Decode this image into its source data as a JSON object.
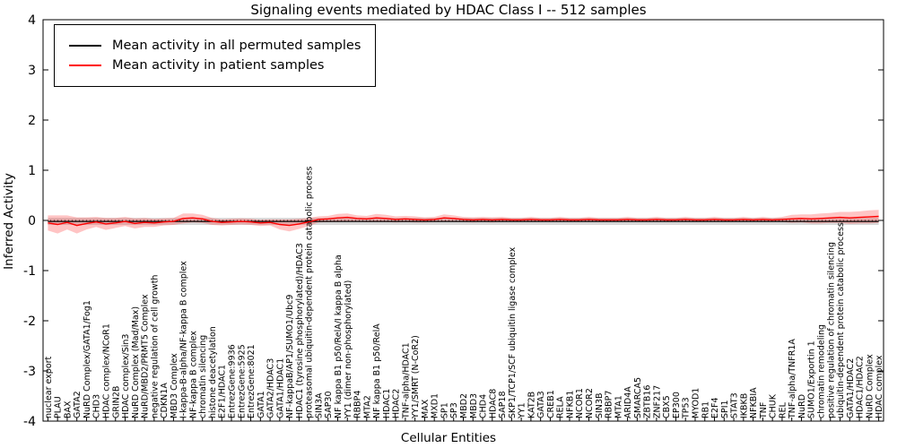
{
  "chart_data": {
    "type": "line",
    "title": "Signaling events mediated by HDAC Class I -- 512 samples",
    "xlabel": "Cellular Entities",
    "ylabel": "Inferred Activity",
    "ylim": [
      -4,
      4
    ],
    "yticks": [
      "-4",
      "-3",
      "-2",
      "-1",
      "0",
      "1",
      "2",
      "3",
      "4"
    ],
    "grid": false,
    "legend_position": "upper-left",
    "zero_line": {
      "value": 0,
      "style": "dotted",
      "color": "#000000"
    },
    "colors": {
      "permuted_line": "#000000",
      "patient_line": "#ff0000",
      "permuted_band": "rgba(120,120,120,0.30)",
      "patient_band": "rgba(255,60,60,0.30)",
      "axis": "#000000",
      "background": "#ffffff"
    },
    "categories": [
      "nuclear export",
      "PLAU",
      "BAX",
      "GATA2",
      "NuRD Complex/GATA1/Fog1",
      "CHD3",
      "HDAC complex/NCoR1",
      "GRIN2B",
      "HDAC complex/Sin3",
      "NuRD Complex (Mad/Max)",
      "NuRD/MBD2/PRMT5 Complex",
      "negative regulation of cell growth",
      "CDKN1A",
      "MBD3 Complex",
      "I-kappa-B-alpha/NF-kappa B complex",
      "NF-kappa B complex",
      "chromatin silencing",
      "histone deacetylation",
      "E2F1/HDAC1",
      "EntrezGene:9936",
      "EntrezGene:5925",
      "EntrezGene:8021",
      "GATA1",
      "GATA2/HDAC3",
      "GATA1/HDAC1",
      "NF-kappaB/AP1/SUMO1/Ubc9",
      "HDAC1 (tyrosine phosphorylated)/HDAC3",
      "proteasomal ubiquitin-dependent protein catabolic process",
      "SIN3A",
      "SAP30",
      "NF kappa B1 p50/RelA/I kappa B alpha",
      "YY1 (dimer non-phosphorylated)",
      "RBBP4",
      "MTA2",
      "NF kappa B1 p50/RelA",
      "HDAC1",
      "HDAC2",
      "TNF-alpha/HDAC1",
      "YY1/SMRT (N-CoR2)",
      "MAX",
      "MXD1",
      "SP1",
      "SP3",
      "MBD2",
      "MBD3",
      "CHD4",
      "HDAC8",
      "SAP18",
      "SKP1/TCP1/SCF ubiquitin ligase complex",
      "YY1",
      "KAT2B",
      "GATA3",
      "CREB1",
      "RELA",
      "NFKB1",
      "NCOR1",
      "NCOR2",
      "SIN3B",
      "RBBP7",
      "MTA1",
      "ARID4A",
      "SMARCA5",
      "ZBTB16",
      "ZNF217",
      "CBX5",
      "EP300",
      "TP53",
      "MYOD1",
      "RB1",
      "E2F4",
      "SPI1",
      "STAT3",
      "IKBKB",
      "NFKBIA",
      "TNF",
      "CHUK",
      "REL",
      "TNF-alpha/TNFR1A",
      "NuRD",
      "SUMO1/Exportin 1",
      "chromatin remodeling",
      "positive regulation of chromatin silencing",
      "ubiquitin-dependent protein catabolic process",
      "GATA1/HDAC2",
      "HDAC1/HDAC2",
      "NuRD Complex",
      "HDAC complex"
    ],
    "series": [
      {
        "name": "Mean activity in all permuted samples",
        "color": "#000000",
        "value_constant": -0.02,
        "band_constant": 0.07
      },
      {
        "name": "Mean activity in patient samples",
        "color": "#ff0000",
        "values": [
          -0.05,
          -0.08,
          -0.04,
          -0.1,
          -0.06,
          -0.03,
          -0.07,
          -0.05,
          -0.02,
          -0.06,
          -0.04,
          -0.05,
          -0.03,
          -0.02,
          0.04,
          0.05,
          0.03,
          -0.02,
          -0.04,
          -0.03,
          -0.02,
          -0.03,
          -0.05,
          -0.04,
          -0.08,
          -0.1,
          -0.07,
          -0.03,
          0.02,
          0.03,
          0.05,
          0.06,
          0.04,
          0.03,
          0.05,
          0.04,
          0.02,
          0.03,
          0.02,
          0.01,
          0.02,
          0.05,
          0.04,
          0.02,
          0.01,
          0.02,
          0.01,
          0.02,
          0.01,
          0.01,
          0.02,
          0.01,
          0.01,
          0.02,
          0.01,
          0.01,
          0.02,
          0.01,
          0.01,
          0.01,
          0.02,
          0.01,
          0.01,
          0.02,
          0.01,
          0.01,
          0.02,
          0.01,
          0.01,
          0.02,
          0.01,
          0.01,
          0.02,
          0.01,
          0.02,
          0.01,
          0.02,
          0.03,
          0.04,
          0.03,
          0.04,
          0.05,
          0.06,
          0.05,
          0.06,
          0.07,
          0.08
        ],
        "band": [
          0.15,
          0.18,
          0.14,
          0.16,
          0.12,
          0.1,
          0.12,
          0.1,
          0.09,
          0.1,
          0.09,
          0.08,
          0.07,
          0.07,
          0.1,
          0.09,
          0.08,
          0.07,
          0.06,
          0.06,
          0.06,
          0.06,
          0.06,
          0.06,
          0.1,
          0.12,
          0.1,
          0.08,
          0.06,
          0.06,
          0.08,
          0.08,
          0.06,
          0.06,
          0.08,
          0.07,
          0.06,
          0.06,
          0.06,
          0.05,
          0.05,
          0.07,
          0.06,
          0.05,
          0.05,
          0.05,
          0.05,
          0.05,
          0.04,
          0.04,
          0.05,
          0.04,
          0.04,
          0.05,
          0.04,
          0.04,
          0.05,
          0.04,
          0.04,
          0.04,
          0.05,
          0.04,
          0.04,
          0.05,
          0.04,
          0.04,
          0.05,
          0.04,
          0.04,
          0.05,
          0.04,
          0.04,
          0.05,
          0.04,
          0.05,
          0.04,
          0.05,
          0.08,
          0.08,
          0.09,
          0.1,
          0.1,
          0.11,
          0.12,
          0.12,
          0.13,
          0.13
        ]
      }
    ]
  }
}
